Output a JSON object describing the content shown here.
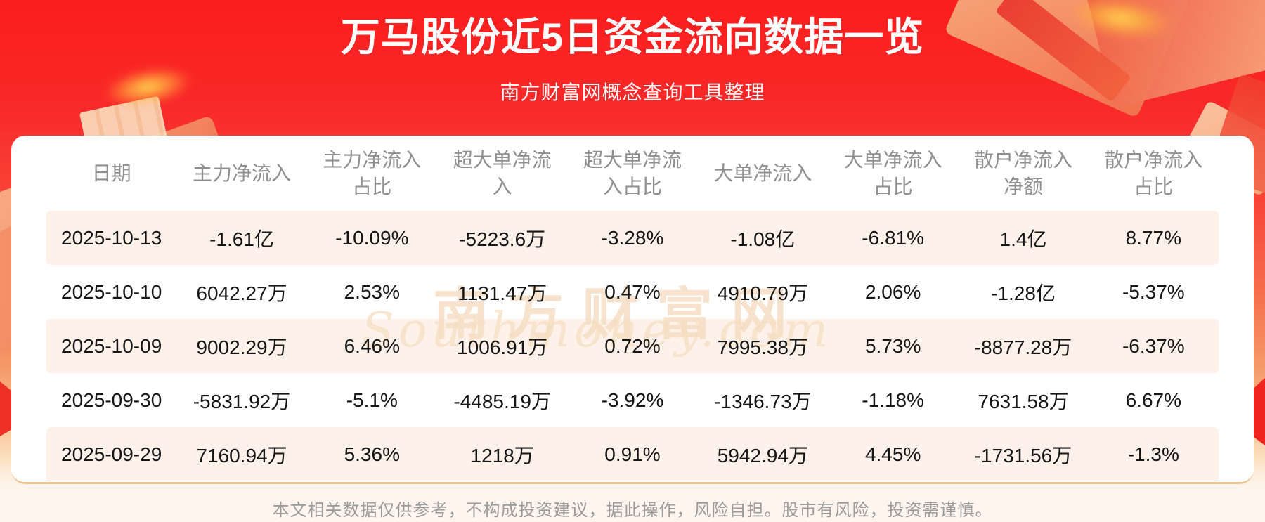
{
  "page": {
    "title": "万马股份近5日资金流向数据一览",
    "subtitle": "南方财富网概念查询工具整理"
  },
  "chart_data": {
    "type": "table",
    "title": "万马股份近5日资金流向数据一览",
    "subtitle": "南方财富网概念查询工具整理",
    "columns": [
      "日期",
      "主力净流入",
      "主力净流入占比",
      "超大单净流入",
      "超大单净流入占比",
      "大单净流入",
      "大单净流入占比",
      "散户净流入净额",
      "散户净流入占比"
    ],
    "rows": [
      [
        "2025-10-13",
        "-1.61亿",
        "-10.09%",
        "-5223.6万",
        "-3.28%",
        "-1.08亿",
        "-6.81%",
        "1.4亿",
        "8.77%"
      ],
      [
        "2025-10-10",
        "6042.27万",
        "2.53%",
        "1131.47万",
        "0.47%",
        "4910.79万",
        "2.06%",
        "-1.28亿",
        "-5.37%"
      ],
      [
        "2025-10-09",
        "9002.29万",
        "6.46%",
        "1006.91万",
        "0.72%",
        "7995.38万",
        "5.73%",
        "-8877.28万",
        "-6.37%"
      ],
      [
        "2025-09-30",
        "-5831.92万",
        "-5.1%",
        "-4485.19万",
        "-3.92%",
        "-1346.73万",
        "-1.18%",
        "7631.58万",
        "6.67%"
      ],
      [
        "2025-09-29",
        "7160.94万",
        "5.36%",
        "1218万",
        "0.91%",
        "5942.94万",
        "4.45%",
        "-1731.56万",
        "-1.3%"
      ]
    ]
  },
  "watermark": {
    "cn": "南方财富网",
    "en": "Southmoney.com"
  },
  "footer": {
    "disclaimer": "本文相关数据仅供参考，不构成投资建议，据此操作，风险自担。股市有风险，投资需谨慎。"
  },
  "colors": {
    "banner_red": "#f92929",
    "banner_orange": "#f7bd8c",
    "row_stripe": "#fdf1e9",
    "header_text": "#8f8f8f",
    "cell_text": "#151515",
    "divider": "#efc490",
    "watermark": "#f6ddc1"
  }
}
